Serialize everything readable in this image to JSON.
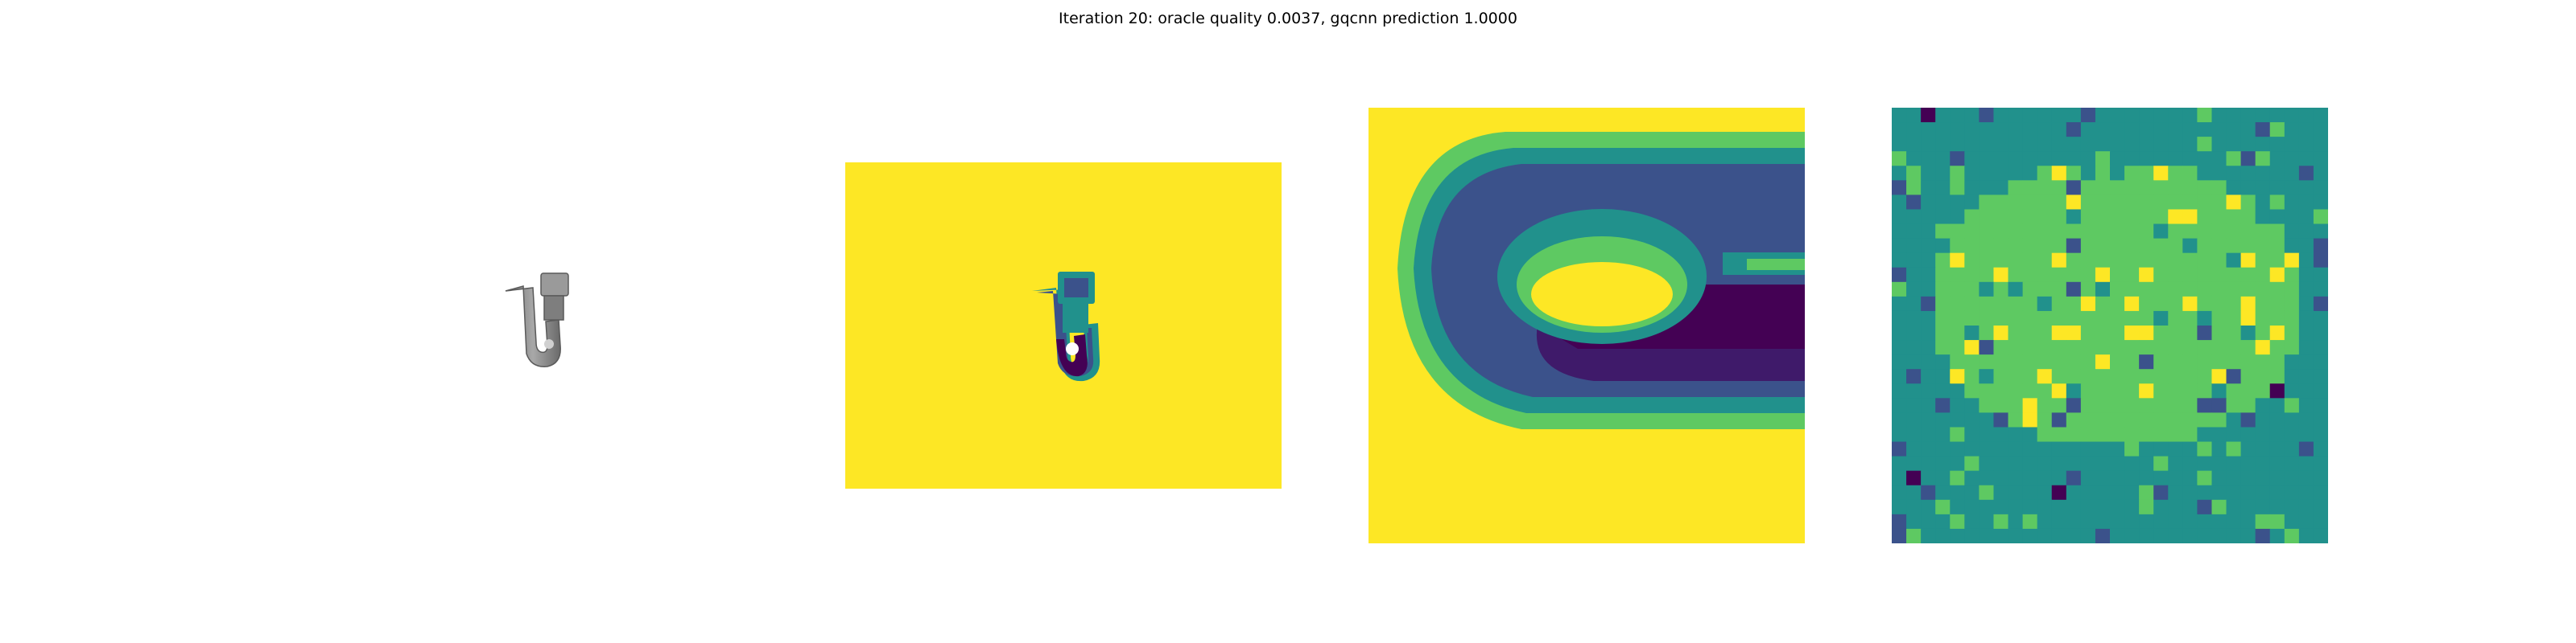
{
  "title": "Iteration 20: oracle quality 0.0037, gqcnn prediction 1.0000",
  "colors": {
    "background": "#ffffff",
    "viridis_dark": "#440154",
    "viridis_blue": "#3b528b",
    "viridis_teal": "#21918c",
    "viridis_green": "#5ec962",
    "viridis_yellow": "#fde725",
    "object_gray": "#8c8c8c"
  },
  "panels": [
    {
      "name": "object-render",
      "description_icon": "gray-object-icon"
    },
    {
      "name": "depth-image"
    },
    {
      "name": "depth-crop"
    },
    {
      "name": "quality-grid",
      "grid_size": 30
    }
  ]
}
